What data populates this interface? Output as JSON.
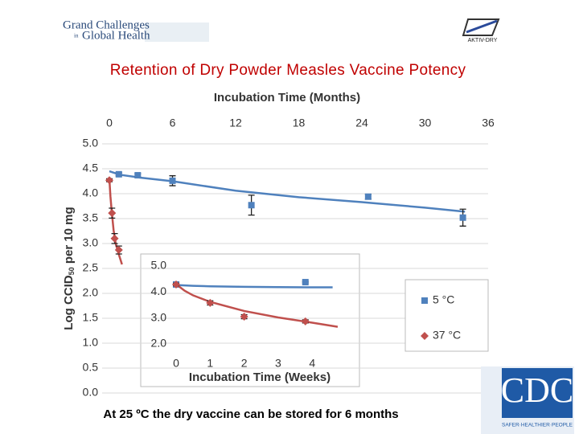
{
  "header": {
    "logo_left": [
      "Grand Challenges",
      "in",
      "Global Health"
    ],
    "logo_right": "AKTIV-DRY",
    "cdc": "CDC",
    "cdc_tagline": "SAFER·HEALTHIER·PEOPLE"
  },
  "footnote": "At 25 ºC the dry vaccine can be stored for 6 months",
  "chart_data": [
    {
      "type": "scatter",
      "title": "Retention of Dry Powder Measles Vaccine Potency",
      "x_label": "Incubation Time (Months)",
      "y_label": [
        "Log CCID",
        "50",
        " per 10 mg"
      ],
      "xlim": [
        0,
        36
      ],
      "xticks": [
        0,
        6,
        12,
        18,
        24,
        30,
        36
      ],
      "ylim": [
        0,
        5
      ],
      "yticks": [
        {
          "value": 0,
          "label": "0.0"
        },
        0.5,
        {
          "value": 1,
          "label": "1.0"
        },
        1.5,
        {
          "value": 2,
          "label": "2.0"
        },
        2.5,
        {
          "value": 3,
          "label": "3.0"
        },
        3.5,
        {
          "value": 4,
          "label": "4.0"
        },
        4.5,
        {
          "value": 5,
          "label": "5.0"
        }
      ],
      "grid": true,
      "legend": "lower right",
      "series": [
        {
          "name": "5 °C",
          "color": "#4f81bd",
          "marker": "square",
          "x": [
            0.9,
            2.7,
            6.0,
            13.5,
            24.6,
            33.6
          ],
          "values": [
            4.39,
            4.37,
            4.26,
            3.77,
            3.94,
            3.52
          ],
          "errors": [
            0.03,
            0.03,
            0.1,
            0.2,
            0.05,
            0.17
          ],
          "fit_x": [
            0,
            1,
            3,
            6,
            12,
            18,
            24,
            30,
            33.8
          ],
          "fit_values": [
            4.45,
            4.38,
            4.32,
            4.25,
            4.06,
            3.93,
            3.83,
            3.72,
            3.64
          ]
        },
        {
          "name": "37 °C",
          "color": "#c0504d",
          "marker": "diamond",
          "x": [
            0,
            0.25,
            0.5,
            0.9
          ],
          "values": [
            4.27,
            3.61,
            3.1,
            2.87
          ],
          "errors": [
            0.03,
            0.1,
            0.1,
            0.08
          ],
          "fit_x": [
            0,
            0.1,
            0.2,
            0.4,
            0.6,
            0.9,
            1.2
          ],
          "fit_values": [
            4.3,
            3.95,
            3.7,
            3.27,
            3.0,
            2.78,
            2.58
          ]
        }
      ]
    },
    {
      "type": "scatter",
      "x_label": "Incubation Time (Weeks)",
      "xlim": [
        0,
        5.2
      ],
      "xticks": [
        0,
        1,
        2,
        3,
        4
      ],
      "ylim": [
        2,
        5
      ],
      "yticks": [
        {
          "value": 2,
          "label": "2.0"
        },
        {
          "value": 3,
          "label": "3.0"
        },
        {
          "value": 4,
          "label": "4.0"
        },
        {
          "value": 5,
          "label": "5.0"
        }
      ],
      "grid": false,
      "series": [
        {
          "color": "#4f81bd",
          "marker": "square",
          "x": [
            0,
            3.8
          ],
          "values": [
            4.29,
            4.38
          ],
          "errors": [
            0.03,
            0.03
          ],
          "fit_x": [
            0,
            0.5,
            1,
            2,
            3,
            4,
            4.6
          ],
          "fit_values": [
            4.27,
            4.24,
            4.22,
            4.2,
            4.19,
            4.18,
            4.18
          ]
        },
        {
          "color": "#c0504d",
          "marker": "diamond",
          "x": [
            0,
            1,
            2,
            3.8
          ],
          "values": [
            4.29,
            3.58,
            3.05,
            2.87
          ],
          "errors": [
            0.05,
            0.08,
            0.08,
            0.06
          ],
          "fit_x": [
            0,
            0.25,
            0.5,
            1,
            2,
            3,
            4,
            4.75
          ],
          "fit_values": [
            4.3,
            4.05,
            3.87,
            3.62,
            3.27,
            3.02,
            2.82,
            2.66
          ]
        }
      ]
    }
  ]
}
